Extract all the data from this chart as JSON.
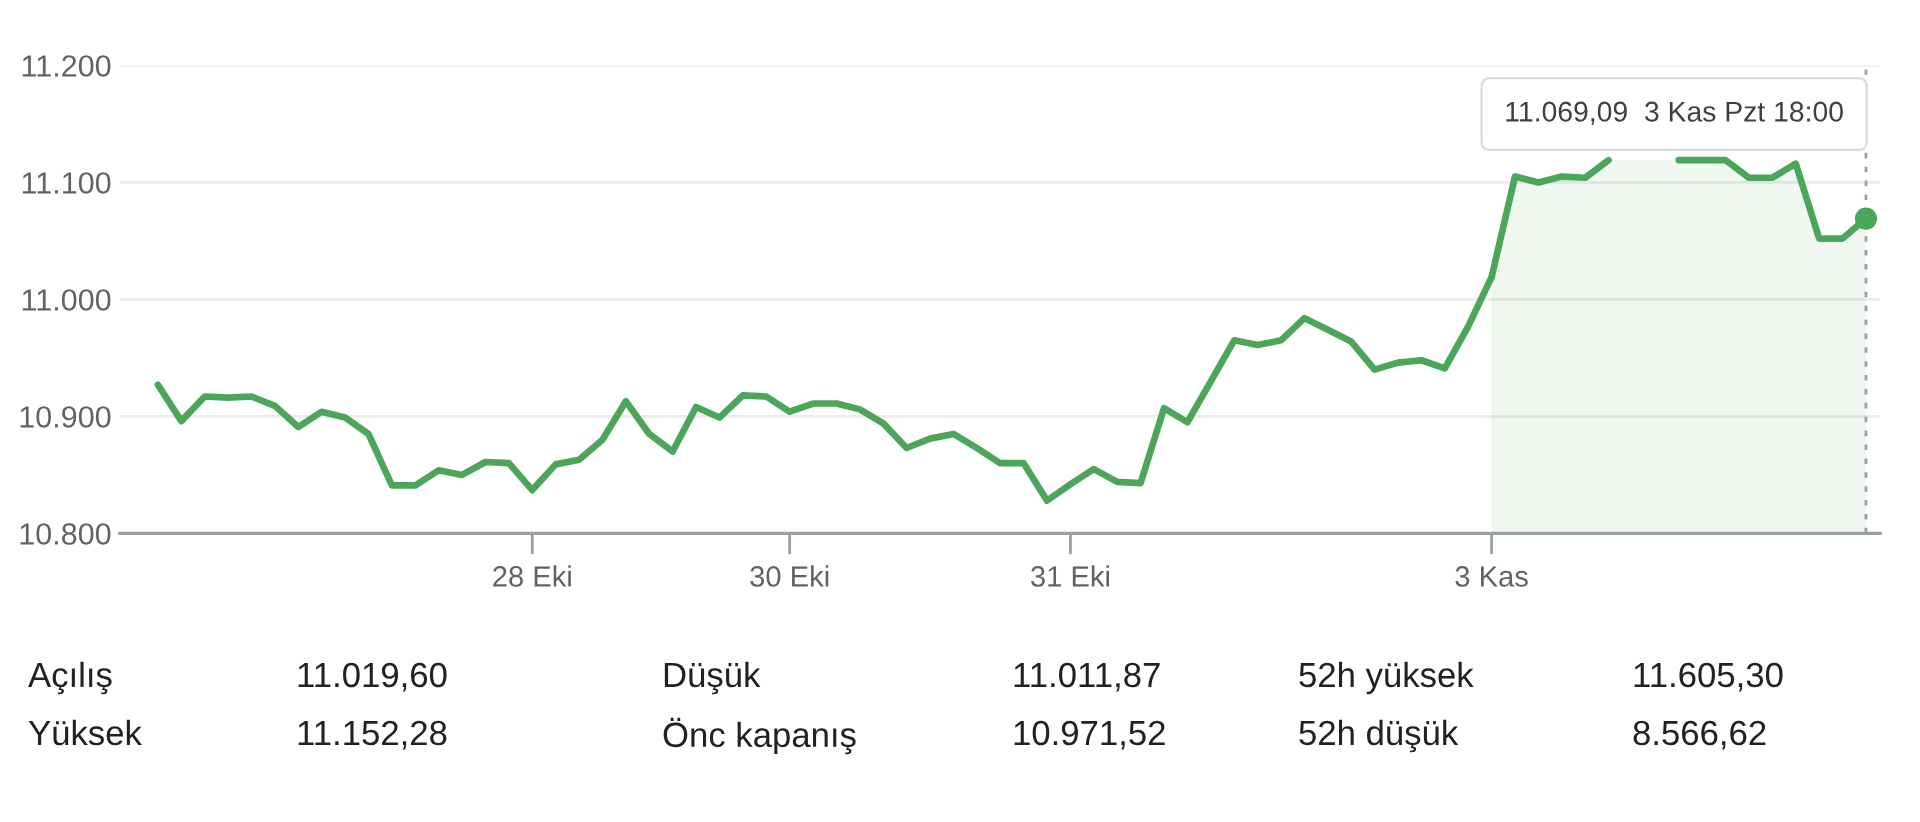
{
  "chart_data": {
    "type": "line",
    "categories": [
      null,
      null,
      null,
      null,
      null,
      null,
      null,
      null,
      null,
      null,
      null,
      null,
      null,
      null,
      null,
      null,
      "28 Eki",
      null,
      null,
      null,
      null,
      null,
      null,
      null,
      null,
      null,
      null,
      "30 Eki",
      null,
      null,
      null,
      null,
      null,
      null,
      null,
      null,
      null,
      null,
      null,
      "31 Eki",
      null,
      null,
      null,
      null,
      null,
      null,
      null,
      null,
      null,
      null,
      null,
      null,
      null,
      null,
      null,
      null,
      null,
      "3 Kas",
      null,
      null,
      null,
      null,
      null,
      null,
      null,
      null,
      null,
      null,
      null,
      null,
      null,
      null,
      null,
      null
    ],
    "series": [
      {
        "color": "#4ca65a",
        "values": [
          10927,
          10896,
          10917,
          10916,
          10917,
          10909,
          10891,
          10904,
          10899,
          10885,
          10841,
          10841,
          10854,
          10850,
          10861,
          10860,
          10837,
          10859,
          10863,
          10880,
          10913,
          10885,
          10870,
          10908,
          10899,
          10918,
          10917,
          10904,
          10911,
          10911,
          10906,
          10894,
          10873,
          10881,
          10885,
          10873,
          10860,
          10860,
          10828,
          10842,
          10855,
          10844,
          10843,
          10907,
          10895,
          10930,
          10965,
          10961,
          10965,
          10984,
          10974,
          10964,
          10940,
          10946,
          10948,
          10941,
          10977,
          11019,
          null,
          null,
          null,
          null,
          null,
          null,
          null,
          null,
          null,
          null,
          null,
          null,
          null,
          null,
          null,
          null
        ]
      },
      {
        "type": "area",
        "color": "#4ca65a",
        "values": [
          null,
          null,
          null,
          null,
          null,
          null,
          null,
          null,
          null,
          null,
          null,
          null,
          null,
          null,
          null,
          null,
          null,
          null,
          null,
          null,
          null,
          null,
          null,
          null,
          null,
          null,
          null,
          null,
          null,
          null,
          null,
          null,
          null,
          null,
          null,
          null,
          null,
          null,
          null,
          null,
          null,
          null,
          null,
          null,
          null,
          null,
          null,
          null,
          null,
          null,
          null,
          null,
          null,
          null,
          null,
          null,
          null,
          11019,
          11105,
          11100,
          11105,
          11104,
          11119,
          null,
          null,
          11119,
          11119,
          11119,
          11104,
          11104,
          11116,
          11052,
          11052,
          11069.09
        ]
      },
      {
        "type": "scatter",
        "color": "#4ca65a",
        "marker": "circle",
        "values": [
          null,
          null,
          null,
          null,
          null,
          null,
          null,
          null,
          null,
          null,
          null,
          null,
          null,
          null,
          null,
          null,
          null,
          null,
          null,
          null,
          null,
          null,
          null,
          null,
          null,
          null,
          null,
          null,
          null,
          null,
          null,
          null,
          null,
          null,
          null,
          null,
          null,
          null,
          null,
          null,
          null,
          null,
          null,
          null,
          null,
          null,
          null,
          null,
          null,
          null,
          null,
          null,
          null,
          null,
          null,
          null,
          null,
          null,
          null,
          null,
          null,
          null,
          null,
          null,
          null,
          null,
          null,
          null,
          null,
          null,
          null,
          null,
          null,
          11069.09
        ]
      }
    ],
    "ylim": [
      10800,
      11200
    ],
    "yticks": [
      {
        "value": 10800,
        "label": "10.800"
      },
      {
        "value": 10900,
        "label": "10.900"
      },
      {
        "value": 11000,
        "label": "11.000"
      },
      {
        "value": 11100,
        "label": "11.100"
      },
      {
        "value": 11200,
        "label": "11.200"
      }
    ],
    "grid": "y",
    "line_style": "solid",
    "annotations": [
      "11.069,09  3 Kas Pzt 18:00",
      "Açılış",
      "11.019,60",
      "Düşük",
      "11.011,87",
      "52h yüksek",
      "11.605,30",
      "Yüksek",
      "11.152,28",
      "Önc kapanış",
      "10.971,52",
      "52h düşük",
      "8.566,62"
    ]
  }
}
